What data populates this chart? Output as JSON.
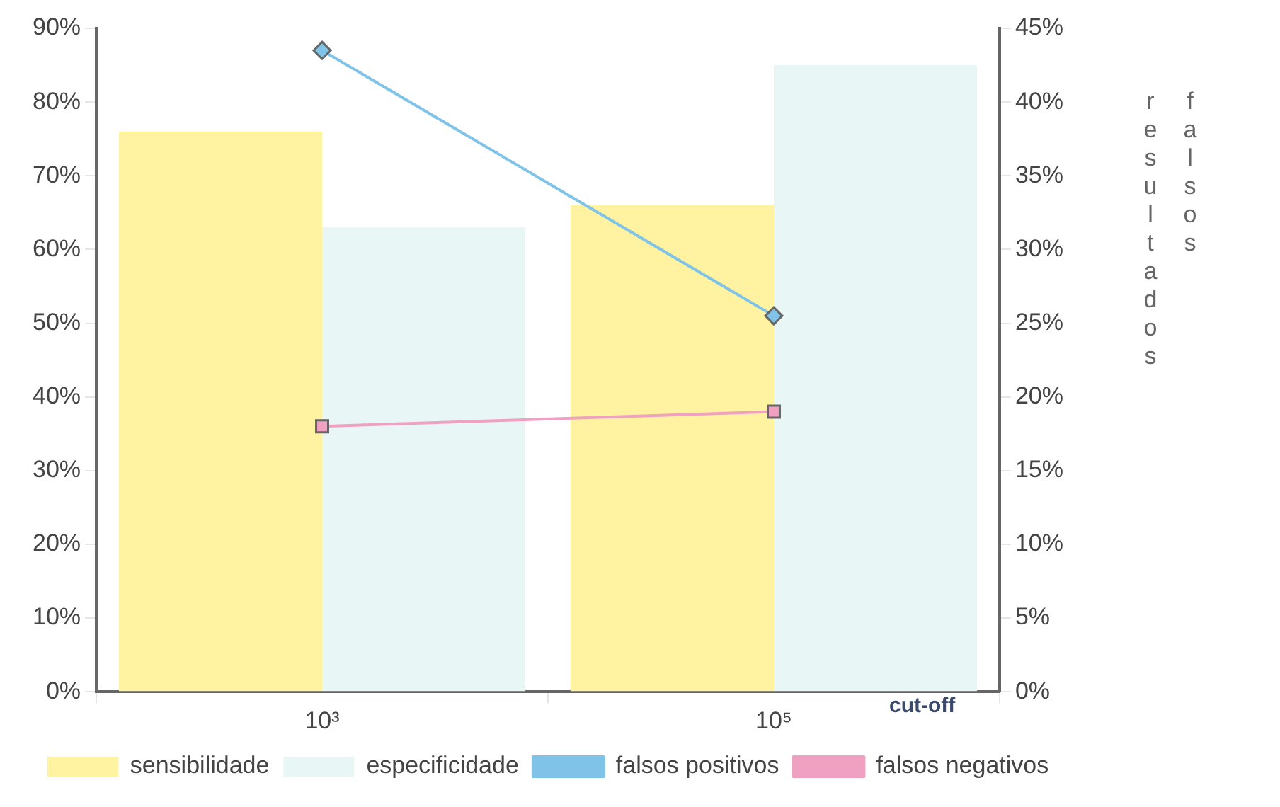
{
  "chart_data": {
    "type": "bar",
    "categories": [
      "10³",
      "10⁵"
    ],
    "xlabel": "cut-off",
    "y2label": "resultados falsos",
    "series": [
      {
        "name": "sensibilidade",
        "color": "#fff2a0",
        "values": [
          76,
          66
        ]
      },
      {
        "name": "especificidade",
        "color": "#e8f6f6",
        "values": [
          63,
          85
        ]
      },
      {
        "name": "falsos positivos",
        "type": "line",
        "axis": "y2",
        "color": "#7fc4e8",
        "marker": "diamond",
        "values": [
          43.5,
          25.5
        ]
      },
      {
        "name": "falsos negativos",
        "type": "line",
        "axis": "y2",
        "color": "#f0a0c0",
        "marker": "square",
        "values": [
          18,
          19
        ]
      }
    ],
    "ylim": [
      0,
      90
    ],
    "yticks": [
      {
        "value": 0,
        "label": "0%"
      },
      {
        "value": 10,
        "label": "10%"
      },
      {
        "value": 20,
        "label": "20%"
      },
      {
        "value": 30,
        "label": "30%"
      },
      {
        "value": 40,
        "label": "40%"
      },
      {
        "value": 50,
        "label": "50%"
      },
      {
        "value": 60,
        "label": "60%"
      },
      {
        "value": 70,
        "label": "70%"
      },
      {
        "value": 80,
        "label": "80%"
      },
      {
        "value": 90,
        "label": "90%"
      }
    ],
    "y2lim": [
      0,
      45
    ],
    "y2ticks": [
      {
        "value": 0,
        "label": "0%"
      },
      {
        "value": 5,
        "label": "5%"
      },
      {
        "value": 10,
        "label": "10%"
      },
      {
        "value": 15,
        "label": "15%"
      },
      {
        "value": 20,
        "label": "20%"
      },
      {
        "value": 25,
        "label": "25%"
      },
      {
        "value": 30,
        "label": "30%"
      },
      {
        "value": 35,
        "label": "35%"
      },
      {
        "value": 40,
        "label": "40%"
      },
      {
        "value": 45,
        "label": "45%"
      }
    ],
    "grid": false,
    "legend": "bottom",
    "line_style": "solid"
  }
}
